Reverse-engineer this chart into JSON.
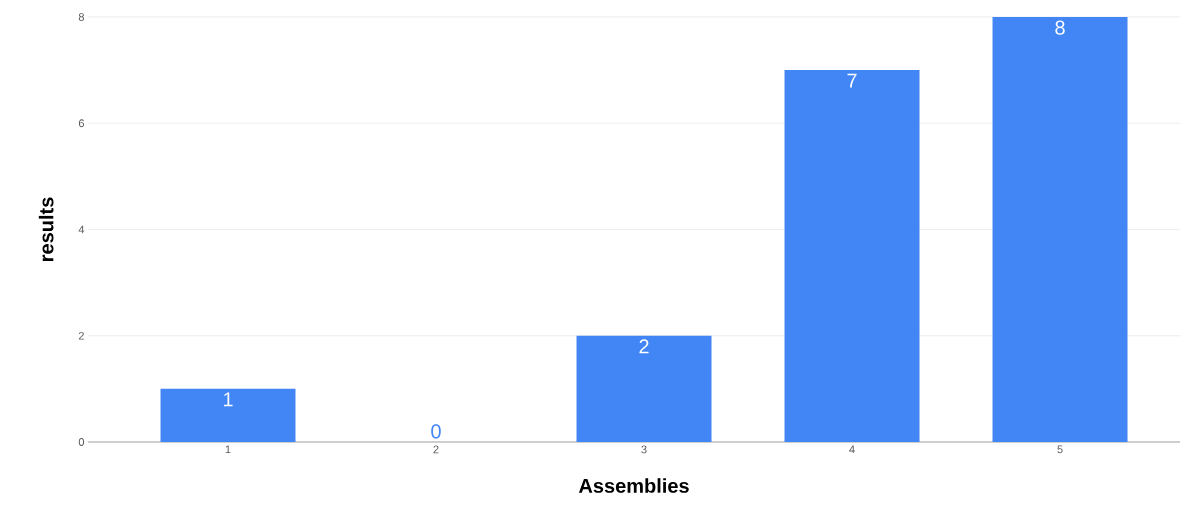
{
  "chart_data": {
    "type": "bar",
    "xlabel": "Assemblies",
    "ylabel": "results",
    "categories": [
      "1",
      "2",
      "3",
      "4",
      "5"
    ],
    "values": [
      1,
      0,
      2,
      7,
      8
    ],
    "color": "#4285f4",
    "ylim": [
      0,
      8
    ],
    "yticks": [
      0,
      2,
      4,
      6,
      8
    ],
    "grid": "y",
    "data_labels": true
  }
}
